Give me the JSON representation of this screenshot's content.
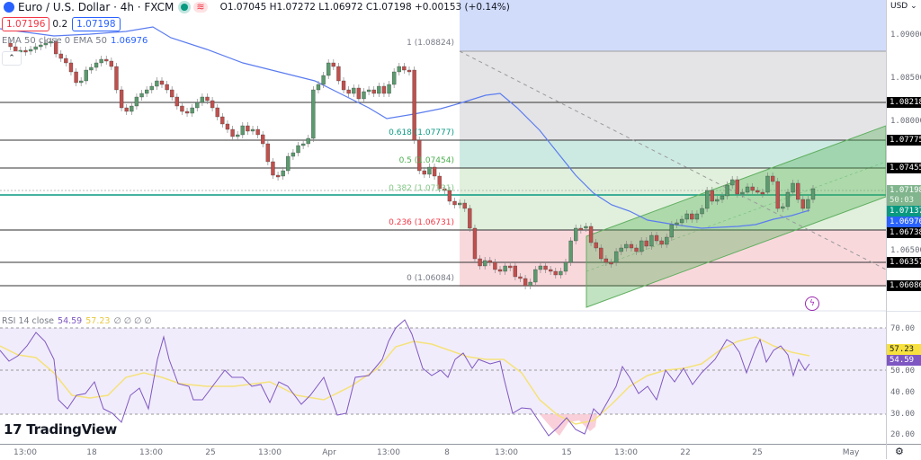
{
  "header": {
    "symbol": "Euro / U.S. Dollar · 4h · FXCM",
    "ohlc": "O1.07045 H1.07272 L1.06972 C1.07198 +0.00153 (+0.14%)",
    "sell_price": "1.07196",
    "spread": "0.2",
    "buy_price": "1.07198"
  },
  "indicators": {
    "ema_label": "EMA 50 close 0 EMA 50",
    "ema_value": "1.06976",
    "rsi_label": "RSI 14 close",
    "rsi_value": "54.59",
    "rsi_ma_value": "57.23",
    "rsi_extra": "∅ ∅ ∅ ∅"
  },
  "price_axis": {
    "currency": "USD",
    "labels": [
      "1.09000",
      "1.08500",
      "1.08000",
      "1.07500",
      "1.06500",
      "1.06000"
    ],
    "tags": [
      {
        "value": "1.08218",
        "color": "#000000"
      },
      {
        "value": "1.07775",
        "color": "#000000"
      },
      {
        "value": "1.07455",
        "color": "#000000"
      },
      {
        "value": "1.07198",
        "color": "#81b58d"
      },
      {
        "value": "50:03",
        "color": "#81b58d"
      },
      {
        "value": "1.07137",
        "color": "#089981"
      },
      {
        "value": "1.06976",
        "color": "#2962ff"
      },
      {
        "value": "1.06738",
        "color": "#000000"
      },
      {
        "value": "1.06357",
        "color": "#000000"
      },
      {
        "value": "1.06086",
        "color": "#000000"
      }
    ]
  },
  "rsi_axis": {
    "labels": [
      "70.00",
      "50.00",
      "40.00",
      "30.00",
      "20.00"
    ],
    "tag_ma": "57.23",
    "tag_rsi": "54.59"
  },
  "time_axis": {
    "labels": [
      "13:00",
      "18",
      "13:00",
      "25",
      "13:00",
      "Apr",
      "13:00",
      "8",
      "13:00",
      "15",
      "13:00",
      "22",
      "25",
      "May"
    ]
  },
  "fib_levels": [
    {
      "label": "1 (1.08824)",
      "color": "#787b86"
    },
    {
      "label": "0.618 (1.07777)",
      "color": "#089981"
    },
    {
      "label": "0.5 (1.07454)",
      "color": "#4caf50"
    },
    {
      "label": "0.382 (1.07131)",
      "color": "#81c784"
    },
    {
      "label": "0.236 (1.06731)",
      "color": "#f23645"
    },
    {
      "label": "0 (1.06084)",
      "color": "#787b86"
    }
  ],
  "branding": {
    "logo_text": "TradingView",
    "logo_mark": "17"
  },
  "colors": {
    "up": "#5b9a6e",
    "down": "#c0504d",
    "ema": "#2962ff",
    "rsi": "#7e57c2",
    "rsi_ma": "#f5e27a",
    "fib_top": "#d1dcfb",
    "fib_grey": "#e6e6e6",
    "fib_teal": "#cdeae2",
    "fib_green": "#dff0db",
    "fib_red": "#f9d6d9",
    "channel": "#4caf50"
  },
  "chart_data": {
    "type": "candlestick",
    "title": "Euro / U.S. Dollar · 4h · FXCM",
    "last": {
      "open": 1.07045,
      "high": 1.07272,
      "low": 1.06972,
      "close": 1.07198,
      "change": 0.00153,
      "change_pct": 0.14
    },
    "ylim": [
      1.0595,
      1.0925
    ],
    "x_ticks": [
      "13:00",
      "18",
      "13:00",
      "25",
      "13:00",
      "Apr",
      "13:00",
      "8",
      "13:00",
      "15",
      "13:00",
      "22",
      "25",
      "May"
    ],
    "horizontal_levels": [
      1.08218,
      1.07775,
      1.07455,
      1.06738,
      1.06357,
      1.06086
    ],
    "fibonacci": [
      {
        "ratio": 1,
        "price": 1.08824
      },
      {
        "ratio": 0.618,
        "price": 1.07777
      },
      {
        "ratio": 0.5,
        "price": 1.07454
      },
      {
        "ratio": 0.382,
        "price": 1.07131
      },
      {
        "ratio": 0.236,
        "price": 1.06731
      },
      {
        "ratio": 0,
        "price": 1.06084
      }
    ],
    "ema50": 1.06976,
    "rsi": {
      "period": 14,
      "value": 54.59,
      "ma": 57.23,
      "bands": [
        70,
        50,
        30
      ],
      "ylim": [
        15,
        80
      ]
    },
    "annotations": [
      "ascending channel (green)",
      "descending dashed trendline"
    ]
  }
}
